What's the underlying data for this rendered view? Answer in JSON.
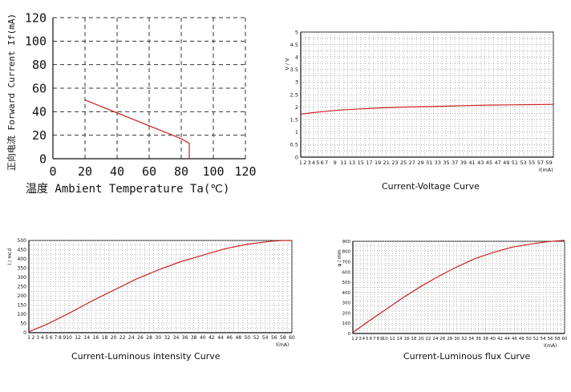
{
  "chart_data": [
    {
      "type": "line",
      "title": "",
      "xlabel": "温度 Ambient Temperature Ta(℃)",
      "ylabel": "正向电流 Forward Current If(mA)",
      "xlim": [
        0,
        120
      ],
      "ylim": [
        0,
        120
      ],
      "xticks": [
        "0",
        "20",
        "40",
        "60",
        "80",
        "100",
        "120"
      ],
      "yticks": [
        "0",
        "20",
        "40",
        "60",
        "80",
        "100",
        "120"
      ],
      "grid": "dashed",
      "series": [
        {
          "x": [
            20,
            80,
            85,
            85
          ],
          "y": [
            50,
            17,
            13,
            0
          ],
          "color": "#cc2222"
        }
      ]
    },
    {
      "type": "line",
      "title": "Current-Voltage Curve",
      "xlabel": "I(mA)",
      "ylabel": "V / V",
      "xlim": [
        1,
        60
      ],
      "ylim": [
        0,
        5
      ],
      "xticks": [
        "1",
        "2",
        "3",
        "4",
        "5",
        "6",
        "7",
        "9",
        "11",
        "13",
        "15",
        "17",
        "19",
        "21",
        "23",
        "25",
        "27",
        "29",
        "31",
        "33",
        "35",
        "37",
        "39",
        "41",
        "43",
        "45",
        "47",
        "49",
        "51",
        "53",
        "55",
        "57",
        "59"
      ],
      "yticks": [
        "0",
        "0.5",
        "1",
        "1.5",
        "2",
        "2.5",
        "3",
        "3.5",
        "4",
        "4.5",
        "5"
      ],
      "grid": "dotted",
      "series": [
        {
          "x": [
            1,
            5,
            10,
            15,
            20,
            25,
            30,
            35,
            40,
            45,
            50,
            55,
            60
          ],
          "y": [
            1.72,
            1.8,
            1.88,
            1.93,
            1.97,
            2.0,
            2.02,
            2.04,
            2.06,
            2.08,
            2.09,
            2.1,
            2.11
          ],
          "color": "#cc2222"
        }
      ]
    },
    {
      "type": "line",
      "title": "Current-Luminous intensity Curve",
      "xlabel": "I(mA)",
      "ylabel": "I / mcd",
      "xlim": [
        1,
        60
      ],
      "ylim": [
        0,
        500
      ],
      "xticks": [
        "1",
        "2",
        "3",
        "4",
        "5",
        "6",
        "7",
        "8",
        "9",
        "10",
        "12",
        "14",
        "16",
        "18",
        "20",
        "22",
        "24",
        "26",
        "28",
        "30",
        "32",
        "34",
        "36",
        "38",
        "40",
        "42",
        "44",
        "46",
        "48",
        "50",
        "52",
        "54",
        "56",
        "58",
        "60"
      ],
      "yticks": [
        "0",
        "50",
        "100",
        "150",
        "200",
        "250",
        "300",
        "350",
        "400",
        "450",
        "500"
      ],
      "grid": "dotted",
      "series": [
        {
          "x": [
            1,
            5,
            10,
            15,
            20,
            25,
            30,
            35,
            40,
            45,
            50,
            55,
            58,
            60
          ],
          "y": [
            5,
            45,
            105,
            170,
            230,
            290,
            340,
            385,
            420,
            455,
            480,
            495,
            500,
            500
          ],
          "color": "#cc2222"
        }
      ]
    },
    {
      "type": "line",
      "title": "Current-Luminous flux Curve",
      "xlabel": "I(mA)",
      "ylabel": "φ / mm",
      "xlim": [
        1,
        60
      ],
      "ylim": [
        0,
        900
      ],
      "xticks": [
        "1",
        "2",
        "3",
        "4",
        "5",
        "6",
        "7",
        "8",
        "9",
        "10",
        "12",
        "14",
        "16",
        "18",
        "20",
        "22",
        "24",
        "26",
        "28",
        "30",
        "32",
        "34",
        "36",
        "38",
        "40",
        "42",
        "44",
        "46",
        "48",
        "50",
        "52",
        "54",
        "56",
        "58",
        "60"
      ],
      "yticks": [
        "0",
        "100",
        "200",
        "300",
        "400",
        "500",
        "600",
        "700",
        "800",
        "900"
      ],
      "grid": "dotted",
      "series": [
        {
          "x": [
            1,
            5,
            10,
            15,
            20,
            25,
            30,
            35,
            40,
            45,
            50,
            55,
            60
          ],
          "y": [
            10,
            110,
            230,
            350,
            460,
            560,
            650,
            730,
            790,
            840,
            870,
            895,
            910
          ],
          "color": "#cc2222"
        }
      ]
    }
  ]
}
